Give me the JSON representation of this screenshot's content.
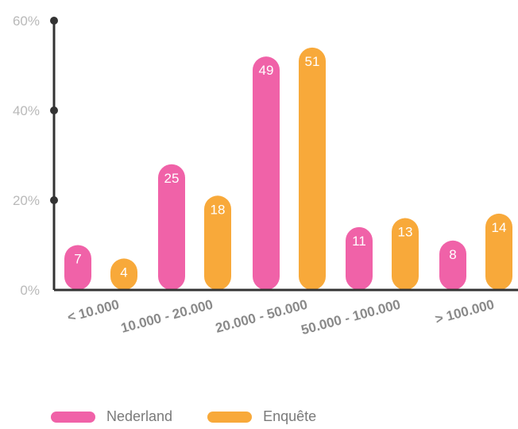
{
  "colors": {
    "nederland": "#f062a8",
    "enquete": "#f8a93a",
    "axis": "#333333",
    "tick_text": "#b9b9b9"
  },
  "chart_data": {
    "type": "bar",
    "categories": [
      "< 10.000",
      "10.000 - 20.000",
      "20.000 - 50.000",
      "50.000 - 100.000",
      "> 100.000"
    ],
    "series": [
      {
        "name": "Nederland",
        "values": [
          7,
          25,
          49,
          11,
          8
        ]
      },
      {
        "name": "Enquête",
        "values": [
          4,
          18,
          51,
          13,
          14
        ]
      }
    ],
    "ylim": [
      0,
      60
    ],
    "yticks": [
      "0%",
      "20%",
      "40%",
      "60%"
    ],
    "ytick_values": [
      0,
      20,
      40,
      60
    ],
    "legend_position": "bottom-left",
    "grid": false
  }
}
